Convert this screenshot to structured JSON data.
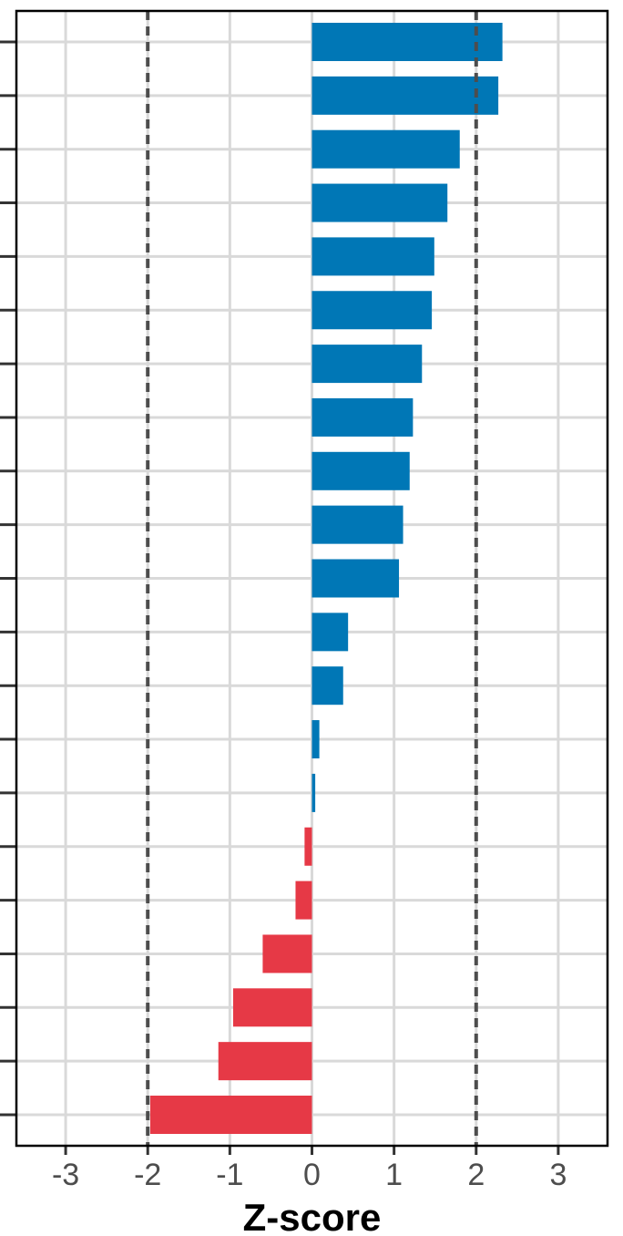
{
  "chart_data": {
    "type": "bar",
    "orientation": "horizontal",
    "xlabel": "Z-score",
    "ylabel": "",
    "xlim": [
      -3.6,
      3.6
    ],
    "x_ticks": [
      -3,
      -2,
      -1,
      0,
      1,
      2,
      3
    ],
    "x_tick_labels": [
      "-3",
      "-2",
      "-1",
      "0",
      "1",
      "2",
      "3"
    ],
    "reference_lines": [
      -2,
      2
    ],
    "grid": true,
    "colors": {
      "positive": "#0077b6",
      "negative": "#e63946"
    },
    "values": [
      2.32,
      2.27,
      1.8,
      1.65,
      1.49,
      1.46,
      1.34,
      1.23,
      1.19,
      1.11,
      1.06,
      0.44,
      0.38,
      0.09,
      0.04,
      -0.09,
      -0.2,
      -0.6,
      -0.96,
      -1.14,
      -1.97
    ]
  }
}
